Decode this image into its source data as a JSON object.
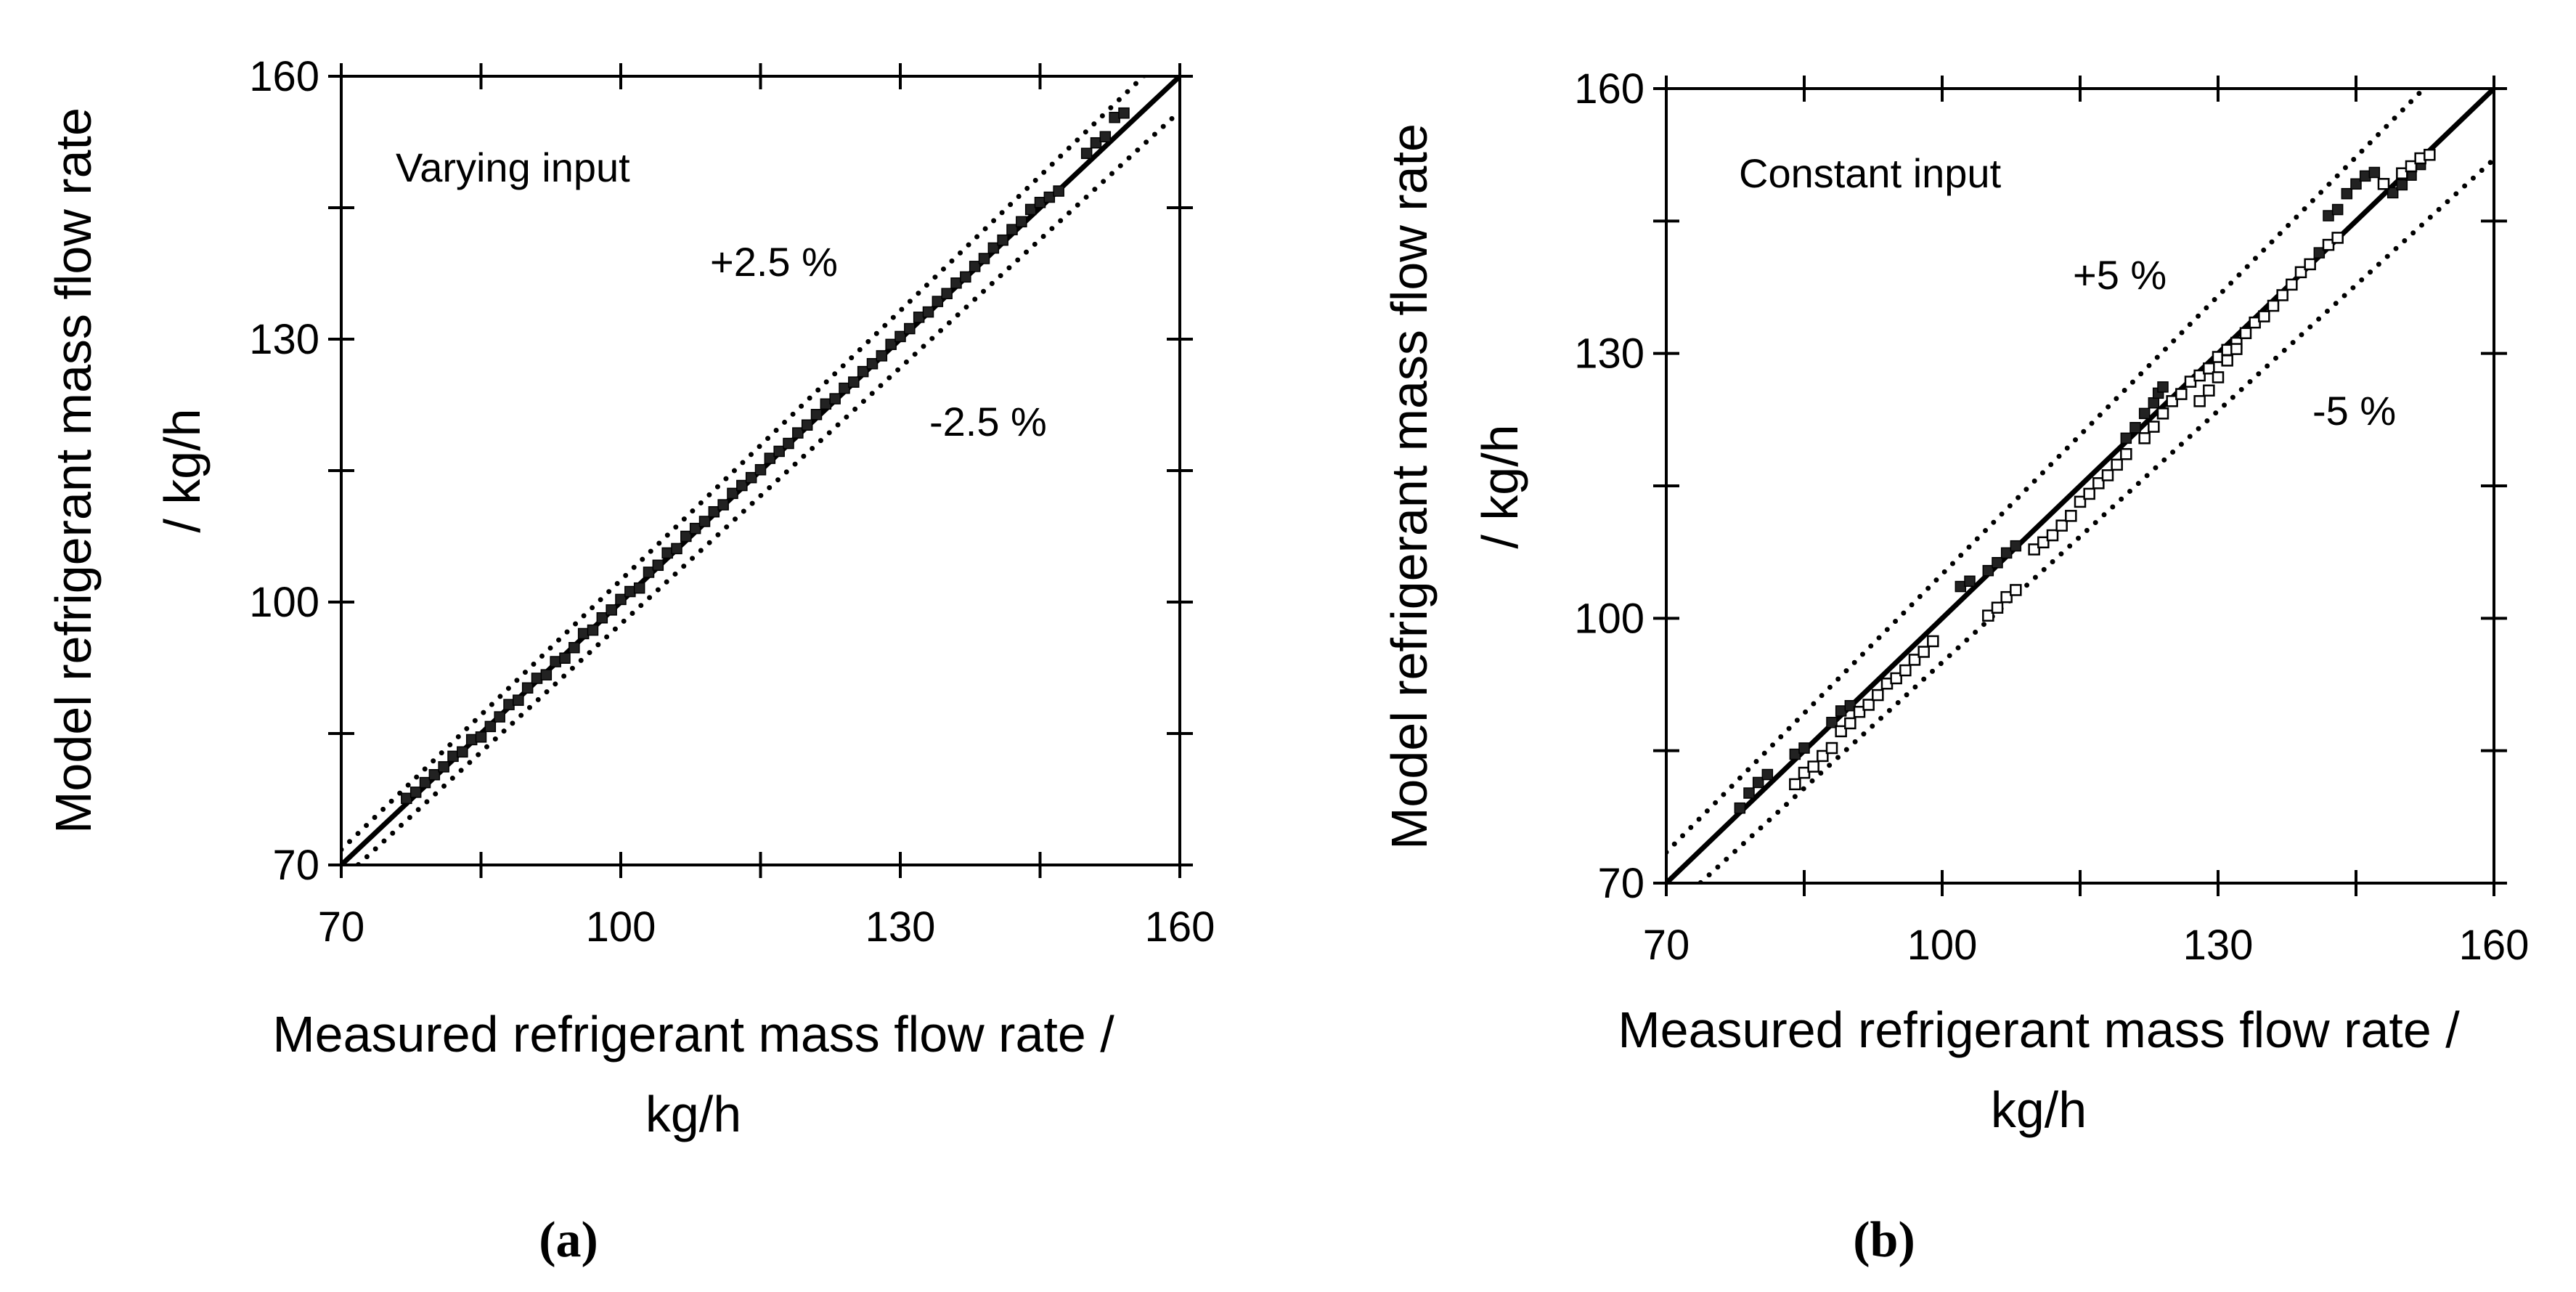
{
  "chart_data": [
    {
      "type": "scatter",
      "panel_label": "(a)",
      "title": "Varying input",
      "xlabel_line1": "Measured refrigerant mass flow rate /",
      "xlabel_line2": "kg/h",
      "ylabel_line1": "Model refrigerant mass flow rate",
      "ylabel_line2": "/ kg/h",
      "xlim": [
        70,
        160
      ],
      "ylim": [
        70,
        160
      ],
      "xticks": [
        70,
        100,
        130,
        160
      ],
      "yticks": [
        70,
        100,
        130,
        160
      ],
      "reference_lines": [
        {
          "name": "parity",
          "factor": 1.0,
          "style": "solid"
        },
        {
          "name": "upper",
          "factor": 1.025,
          "style": "dotted",
          "label": "+2.5 %"
        },
        {
          "name": "lower",
          "factor": 0.975,
          "style": "dotted",
          "label": "-2.5 %"
        }
      ],
      "series": [
        {
          "name": "model vs measured",
          "marker": "filled-square",
          "points": [
            [
              77,
              77.6
            ],
            [
              78,
              78.3
            ],
            [
              79,
              79.4
            ],
            [
              80,
              80.3
            ],
            [
              81,
              81.2
            ],
            [
              82,
              82.4
            ],
            [
              83,
              82.9
            ],
            [
              84,
              84.3
            ],
            [
              85,
              84.6
            ],
            [
              86,
              85.8
            ],
            [
              87,
              86.9
            ],
            [
              88,
              88.3
            ],
            [
              89,
              88.8
            ],
            [
              90,
              90.2
            ],
            [
              91,
              91.3
            ],
            [
              92,
              91.7
            ],
            [
              93,
              93.2
            ],
            [
              94,
              93.6
            ],
            [
              95,
              94.8
            ],
            [
              96,
              96.4
            ],
            [
              97,
              96.8
            ],
            [
              98,
              98.2
            ],
            [
              99,
              99.1
            ],
            [
              100,
              100.3
            ],
            [
              101,
              101.2
            ],
            [
              102,
              101.6
            ],
            [
              103,
              103.4
            ],
            [
              104,
              104.2
            ],
            [
              105,
              105.6
            ],
            [
              106,
              106.1
            ],
            [
              107,
              107.5
            ],
            [
              108,
              108.4
            ],
            [
              109,
              109.2
            ],
            [
              110,
              110.3
            ],
            [
              111,
              111.1
            ],
            [
              112,
              112.4
            ],
            [
              113,
              113.3
            ],
            [
              114,
              114.2
            ],
            [
              115,
              115.1
            ],
            [
              116,
              116.4
            ],
            [
              117,
              117.2
            ],
            [
              118,
              118.1
            ],
            [
              119,
              119.3
            ],
            [
              120,
              120.2
            ],
            [
              121,
              121.4
            ],
            [
              122,
              122.6
            ],
            [
              123,
              123.2
            ],
            [
              124,
              124.4
            ],
            [
              125,
              125.1
            ],
            [
              126,
              126.3
            ],
            [
              127,
              127.2
            ],
            [
              128,
              128.1
            ],
            [
              129,
              129.4
            ],
            [
              130,
              130.3
            ],
            [
              131,
              131.2
            ],
            [
              132,
              132.5
            ],
            [
              133,
              133.1
            ],
            [
              134,
              134.3
            ],
            [
              135,
              135.2
            ],
            [
              136,
              136.4
            ],
            [
              137,
              137.1
            ],
            [
              138,
              138.3
            ],
            [
              139,
              139.2
            ],
            [
              140,
              140.4
            ],
            [
              141,
              141.3
            ],
            [
              142,
              142.5
            ],
            [
              143,
              143.4
            ],
            [
              144,
              144.8
            ],
            [
              145,
              145.6
            ],
            [
              146,
              146.2
            ],
            [
              147,
              146.9
            ],
            [
              150,
              151.2
            ],
            [
              151,
              152.4
            ],
            [
              152,
              153.1
            ],
            [
              153,
              155.3
            ],
            [
              154,
              155.8
            ]
          ]
        }
      ]
    },
    {
      "type": "scatter",
      "panel_label": "(b)",
      "title": "Constant input",
      "xlabel_line1": "Measured refrigerant mass flow rate /",
      "xlabel_line2": "kg/h",
      "ylabel_line1": "Model refrigerant mass flow rate",
      "ylabel_line2": "/ kg/h",
      "xlim": [
        70,
        160
      ],
      "ylim": [
        70,
        160
      ],
      "xticks": [
        70,
        100,
        130,
        160
      ],
      "yticks": [
        70,
        100,
        130,
        160
      ],
      "reference_lines": [
        {
          "name": "parity",
          "factor": 1.0,
          "style": "solid"
        },
        {
          "name": "upper",
          "factor": 1.05,
          "style": "dotted",
          "label": "+5 %"
        },
        {
          "name": "lower",
          "factor": 0.95,
          "style": "dotted",
          "label": "-5 %"
        }
      ],
      "series": [
        {
          "name": "filled markers",
          "marker": "filled-square",
          "points": [
            [
              78,
              78.5
            ],
            [
              79,
              80.2
            ],
            [
              80,
              81.4
            ],
            [
              81,
              82.3
            ],
            [
              84,
              84.6
            ],
            [
              85,
              85.3
            ],
            [
              88,
              88.2
            ],
            [
              89,
              89.5
            ],
            [
              90,
              90.1
            ],
            [
              102,
              103.6
            ],
            [
              103,
              104.2
            ],
            [
              105,
              105.4
            ],
            [
              106,
              106.3
            ],
            [
              107,
              107.4
            ],
            [
              108,
              108.2
            ],
            [
              120,
              120.4
            ],
            [
              121,
              121.6
            ],
            [
              122,
              123.2
            ],
            [
              123,
              124.4
            ],
            [
              123.5,
              125.5
            ],
            [
              124,
              126.2
            ],
            [
              141,
              141.4
            ],
            [
              142,
              145.6
            ],
            [
              143,
              146.3
            ],
            [
              144,
              148.1
            ],
            [
              145,
              149.2
            ],
            [
              146,
              150.1
            ],
            [
              147,
              150.5
            ],
            [
              149,
              148.2
            ],
            [
              150,
              149.1
            ],
            [
              151,
              150.2
            ],
            [
              152,
              151.4
            ]
          ]
        },
        {
          "name": "open markers",
          "marker": "open-square",
          "points": [
            [
              84,
              81.2
            ],
            [
              85,
              82.5
            ],
            [
              86,
              83.2
            ],
            [
              87,
              84.4
            ],
            [
              88,
              85.3
            ],
            [
              89,
              87.2
            ],
            [
              90,
              88.1
            ],
            [
              91,
              89.4
            ],
            [
              92,
              90.2
            ],
            [
              93,
              91.3
            ],
            [
              94,
              92.6
            ],
            [
              95,
              93.2
            ],
            [
              96,
              94.1
            ],
            [
              97,
              95.3
            ],
            [
              98,
              96.2
            ],
            [
              99,
              97.4
            ],
            [
              105,
              100.3
            ],
            [
              106,
              101.2
            ],
            [
              107,
              102.4
            ],
            [
              108,
              103.2
            ],
            [
              110,
              107.8
            ],
            [
              111,
              108.6
            ],
            [
              112,
              109.4
            ],
            [
              113,
              110.5
            ],
            [
              114,
              111.6
            ],
            [
              115,
              113.2
            ],
            [
              116,
              114.1
            ],
            [
              117,
              115.3
            ],
            [
              118,
              116.2
            ],
            [
              119,
              117.4
            ],
            [
              120,
              118.6
            ],
            [
              122,
              120.4
            ],
            [
              123,
              121.7
            ],
            [
              124,
              123.2
            ],
            [
              125,
              124.6
            ],
            [
              126,
              125.4
            ],
            [
              127,
              126.8
            ],
            [
              128,
              127.5
            ],
            [
              129,
              128.3
            ],
            [
              130,
              129.6
            ],
            [
              131,
              130.4
            ],
            [
              132,
              131.2
            ],
            [
              133,
              132.3
            ],
            [
              134,
              133.5
            ],
            [
              135,
              134.2
            ],
            [
              136,
              135.4
            ],
            [
              137,
              136.6
            ],
            [
              138,
              137.8
            ],
            [
              139,
              139.2
            ],
            [
              140,
              140.1
            ],
            [
              128,
              124.6
            ],
            [
              129,
              125.8
            ],
            [
              130,
              127.3
            ],
            [
              131,
              129.2
            ],
            [
              132,
              130.5
            ],
            [
              142,
              142.3
            ],
            [
              143,
              143.1
            ],
            [
              148,
              149.2
            ],
            [
              150,
              150.4
            ],
            [
              151,
              151.2
            ],
            [
              152,
              152.1
            ],
            [
              153,
              152.5
            ]
          ]
        }
      ]
    }
  ]
}
